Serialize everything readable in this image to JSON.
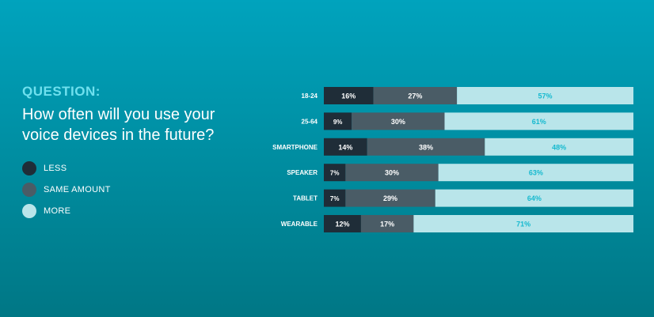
{
  "question": {
    "label": "QUESTION:",
    "text": "How often will you use your voice devices in the future?"
  },
  "legend": [
    {
      "label": "LESS",
      "color": "#1f2d38"
    },
    {
      "label": "SAME AMOUNT",
      "color": "#4a5c66"
    },
    {
      "label": "MORE",
      "color": "#b9e5ea"
    }
  ],
  "chart_data": {
    "type": "bar",
    "orientation": "horizontal",
    "stacked": true,
    "categories": [
      "18-24",
      "25-64",
      "SMARTPHONE",
      "SPEAKER",
      "TABLET",
      "WEARABLE"
    ],
    "series": [
      {
        "name": "LESS",
        "values": [
          16,
          9,
          14,
          7,
          7,
          12
        ],
        "labels": [
          "16%",
          "9%",
          "14%",
          "7%",
          "7%",
          "12%"
        ],
        "color": "#1f2d38",
        "label_color": "#ffffff"
      },
      {
        "name": "SAME AMOUNT",
        "values": [
          27,
          30,
          38,
          30,
          29,
          17
        ],
        "labels": [
          "27%",
          "30%",
          "38%",
          "30%",
          "29%",
          "17%"
        ],
        "color": "#4a5c66",
        "label_color": "#ffffff"
      },
      {
        "name": "MORE",
        "values": [
          57,
          61,
          48,
          63,
          64,
          71
        ],
        "labels": [
          "57%",
          "61%",
          "48%",
          "63%",
          "64%",
          "71%"
        ],
        "color": "#b9e5ea",
        "label_color": "#16b9cf"
      }
    ],
    "xlim": [
      0,
      100
    ],
    "grid": false,
    "legend": "left"
  }
}
